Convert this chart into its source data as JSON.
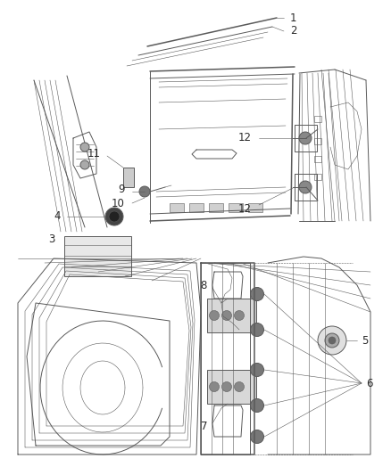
{
  "background_color": "#ffffff",
  "fig_width": 4.38,
  "fig_height": 5.33,
  "dpi": 100,
  "line_color": "#5a5a5a",
  "text_color": "#2a2a2a",
  "label_fontsize": 8.5,
  "thin_lw": 0.4,
  "mid_lw": 0.7,
  "thick_lw": 1.1
}
